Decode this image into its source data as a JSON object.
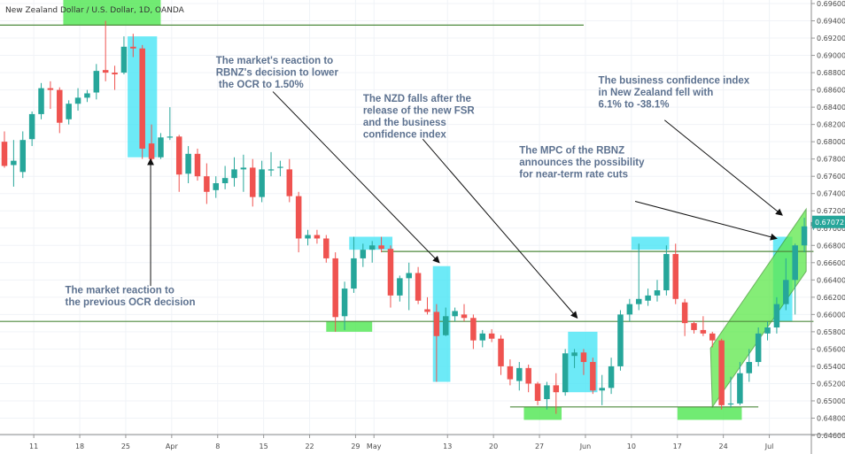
{
  "chart_data": {
    "type": "candlestick",
    "title": "New Zealand Dollar / U.S. Dollar, 1D, OANDA",
    "last_price_label": "0.67072",
    "ylim": [
      0.646,
      0.6965
    ],
    "y_ticks": [
      "0.69600",
      "0.69400",
      "0.69200",
      "0.69000",
      "0.68800",
      "0.68600",
      "0.68400",
      "0.68200",
      "0.68000",
      "0.67800",
      "0.67600",
      "0.67400",
      "0.67200",
      "0.67000",
      "0.66800",
      "0.66600",
      "0.66400",
      "0.66200",
      "0.66000",
      "0.65800",
      "0.65600",
      "0.65400",
      "0.65200",
      "0.65000",
      "0.64800",
      "0.64600"
    ],
    "x_ticks": [
      {
        "i": 3,
        "label": "11"
      },
      {
        "i": 8,
        "label": "18"
      },
      {
        "i": 13,
        "label": "25"
      },
      {
        "i": 18,
        "label": "Apr"
      },
      {
        "i": 23,
        "label": "8"
      },
      {
        "i": 28,
        "label": "15"
      },
      {
        "i": 33,
        "label": "22"
      },
      {
        "i": 38,
        "label": "29"
      },
      {
        "i": 40,
        "label": "May"
      },
      {
        "i": 48,
        "label": "13"
      },
      {
        "i": 53,
        "label": "20"
      },
      {
        "i": 58,
        "label": "27"
      },
      {
        "i": 63,
        "label": "Jun"
      },
      {
        "i": 68,
        "label": "10"
      },
      {
        "i": 73,
        "label": "17"
      },
      {
        "i": 78,
        "label": "24"
      },
      {
        "i": 83,
        "label": "Jul"
      }
    ],
    "candles": [
      {
        "o": 0.68,
        "h": 0.6812,
        "l": 0.677,
        "c": 0.6772
      },
      {
        "o": 0.6773,
        "h": 0.6802,
        "l": 0.6748,
        "c": 0.6778
      },
      {
        "o": 0.6765,
        "h": 0.6812,
        "l": 0.6758,
        "c": 0.6802
      },
      {
        "o": 0.6803,
        "h": 0.6835,
        "l": 0.6795,
        "c": 0.6832
      },
      {
        "o": 0.6832,
        "h": 0.6868,
        "l": 0.6826,
        "c": 0.6862
      },
      {
        "o": 0.6862,
        "h": 0.687,
        "l": 0.6838,
        "c": 0.686
      },
      {
        "o": 0.686,
        "h": 0.6863,
        "l": 0.681,
        "c": 0.6822
      },
      {
        "o": 0.6826,
        "h": 0.6848,
        "l": 0.682,
        "c": 0.6844
      },
      {
        "o": 0.6844,
        "h": 0.6862,
        "l": 0.6836,
        "c": 0.6851
      },
      {
        "o": 0.6851,
        "h": 0.686,
        "l": 0.6846,
        "c": 0.6856
      },
      {
        "o": 0.6857,
        "h": 0.689,
        "l": 0.6849,
        "c": 0.6882
      },
      {
        "o": 0.6883,
        "h": 0.694,
        "l": 0.687,
        "c": 0.688
      },
      {
        "o": 0.688,
        "h": 0.6888,
        "l": 0.686,
        "c": 0.6878
      },
      {
        "o": 0.688,
        "h": 0.6922,
        "l": 0.6878,
        "c": 0.691
      },
      {
        "o": 0.691,
        "h": 0.6925,
        "l": 0.6898,
        "c": 0.6908
      },
      {
        "o": 0.6908,
        "h": 0.6912,
        "l": 0.678,
        "c": 0.6792
      },
      {
        "o": 0.6798,
        "h": 0.682,
        "l": 0.6778,
        "c": 0.678
      },
      {
        "o": 0.6782,
        "h": 0.681,
        "l": 0.678,
        "c": 0.6805
      },
      {
        "o": 0.6806,
        "h": 0.684,
        "l": 0.6802,
        "c": 0.6806
      },
      {
        "o": 0.6806,
        "h": 0.6808,
        "l": 0.6742,
        "c": 0.6762
      },
      {
        "o": 0.6763,
        "h": 0.6795,
        "l": 0.6752,
        "c": 0.6786
      },
      {
        "o": 0.6786,
        "h": 0.6792,
        "l": 0.6755,
        "c": 0.676
      },
      {
        "o": 0.676,
        "h": 0.6775,
        "l": 0.6728,
        "c": 0.6742
      },
      {
        "o": 0.6744,
        "h": 0.676,
        "l": 0.6735,
        "c": 0.6752
      },
      {
        "o": 0.6752,
        "h": 0.6772,
        "l": 0.6745,
        "c": 0.6758
      },
      {
        "o": 0.6758,
        "h": 0.6782,
        "l": 0.6748,
        "c": 0.6768
      },
      {
        "o": 0.6768,
        "h": 0.6785,
        "l": 0.6742,
        "c": 0.677
      },
      {
        "o": 0.677,
        "h": 0.678,
        "l": 0.6725,
        "c": 0.6736
      },
      {
        "o": 0.6736,
        "h": 0.6778,
        "l": 0.673,
        "c": 0.6768
      },
      {
        "o": 0.6768,
        "h": 0.6788,
        "l": 0.676,
        "c": 0.6768
      },
      {
        "o": 0.677,
        "h": 0.6778,
        "l": 0.676,
        "c": 0.6771
      },
      {
        "o": 0.6768,
        "h": 0.678,
        "l": 0.673,
        "c": 0.6737
      },
      {
        "o": 0.6737,
        "h": 0.6742,
        "l": 0.6672,
        "c": 0.6688
      },
      {
        "o": 0.6688,
        "h": 0.6698,
        "l": 0.668,
        "c": 0.6692
      },
      {
        "o": 0.6692,
        "h": 0.6698,
        "l": 0.6682,
        "c": 0.6688
      },
      {
        "o": 0.6688,
        "h": 0.6692,
        "l": 0.666,
        "c": 0.6665
      },
      {
        "o": 0.6665,
        "h": 0.6672,
        "l": 0.658,
        "c": 0.6597
      },
      {
        "o": 0.6598,
        "h": 0.6638,
        "l": 0.6582,
        "c": 0.663
      },
      {
        "o": 0.663,
        "h": 0.669,
        "l": 0.6625,
        "c": 0.6665
      },
      {
        "o": 0.6665,
        "h": 0.6682,
        "l": 0.6655,
        "c": 0.6675
      },
      {
        "o": 0.6675,
        "h": 0.6685,
        "l": 0.666,
        "c": 0.668
      },
      {
        "o": 0.668,
        "h": 0.669,
        "l": 0.6672,
        "c": 0.6676
      },
      {
        "o": 0.6676,
        "h": 0.668,
        "l": 0.6608,
        "c": 0.6622
      },
      {
        "o": 0.6622,
        "h": 0.6645,
        "l": 0.6615,
        "c": 0.6642
      },
      {
        "o": 0.6642,
        "h": 0.666,
        "l": 0.6605,
        "c": 0.6648
      },
      {
        "o": 0.6648,
        "h": 0.6655,
        "l": 0.6612,
        "c": 0.6616
      },
      {
        "o": 0.6606,
        "h": 0.662,
        "l": 0.66,
        "c": 0.6603
      },
      {
        "o": 0.6603,
        "h": 0.6612,
        "l": 0.6522,
        "c": 0.6575
      },
      {
        "o": 0.6576,
        "h": 0.6608,
        "l": 0.6575,
        "c": 0.6598
      },
      {
        "o": 0.6598,
        "h": 0.6608,
        "l": 0.6592,
        "c": 0.6604
      },
      {
        "o": 0.66,
        "h": 0.6612,
        "l": 0.6592,
        "c": 0.6596
      },
      {
        "o": 0.6596,
        "h": 0.66,
        "l": 0.656,
        "c": 0.657
      },
      {
        "o": 0.657,
        "h": 0.6582,
        "l": 0.6562,
        "c": 0.6578
      },
      {
        "o": 0.6578,
        "h": 0.6583,
        "l": 0.6568,
        "c": 0.6572
      },
      {
        "o": 0.6572,
        "h": 0.6576,
        "l": 0.653,
        "c": 0.654
      },
      {
        "o": 0.654,
        "h": 0.6548,
        "l": 0.6518,
        "c": 0.6525
      },
      {
        "o": 0.6523,
        "h": 0.6545,
        "l": 0.6512,
        "c": 0.6538
      },
      {
        "o": 0.6538,
        "h": 0.6542,
        "l": 0.651,
        "c": 0.652
      },
      {
        "o": 0.652,
        "h": 0.6522,
        "l": 0.6495,
        "c": 0.65
      },
      {
        "o": 0.6502,
        "h": 0.6522,
        "l": 0.649,
        "c": 0.6518
      },
      {
        "o": 0.6518,
        "h": 0.6532,
        "l": 0.6485,
        "c": 0.651
      },
      {
        "o": 0.651,
        "h": 0.656,
        "l": 0.6506,
        "c": 0.6555
      },
      {
        "o": 0.6552,
        "h": 0.656,
        "l": 0.6538,
        "c": 0.6556
      },
      {
        "o": 0.6556,
        "h": 0.656,
        "l": 0.653,
        "c": 0.6545
      },
      {
        "o": 0.6545,
        "h": 0.655,
        "l": 0.6508,
        "c": 0.6512
      },
      {
        "o": 0.6512,
        "h": 0.653,
        "l": 0.6495,
        "c": 0.6515
      },
      {
        "o": 0.6515,
        "h": 0.655,
        "l": 0.6508,
        "c": 0.654
      },
      {
        "o": 0.654,
        "h": 0.6605,
        "l": 0.6535,
        "c": 0.66
      },
      {
        "o": 0.66,
        "h": 0.6618,
        "l": 0.6592,
        "c": 0.6612
      },
      {
        "o": 0.6612,
        "h": 0.6682,
        "l": 0.6605,
        "c": 0.6618
      },
      {
        "o": 0.6616,
        "h": 0.663,
        "l": 0.661,
        "c": 0.6622
      },
      {
        "o": 0.6622,
        "h": 0.664,
        "l": 0.6615,
        "c": 0.6628
      },
      {
        "o": 0.6628,
        "h": 0.668,
        "l": 0.6622,
        "c": 0.667
      },
      {
        "o": 0.667,
        "h": 0.6682,
        "l": 0.6612,
        "c": 0.6618
      },
      {
        "o": 0.6614,
        "h": 0.6618,
        "l": 0.6575,
        "c": 0.659
      },
      {
        "o": 0.659,
        "h": 0.6592,
        "l": 0.6578,
        "c": 0.6582
      },
      {
        "o": 0.6582,
        "h": 0.6598,
        "l": 0.6575,
        "c": 0.6578
      },
      {
        "o": 0.6578,
        "h": 0.658,
        "l": 0.6562,
        "c": 0.657
      },
      {
        "o": 0.657,
        "h": 0.6572,
        "l": 0.649,
        "c": 0.6495
      },
      {
        "o": 0.6497,
        "h": 0.6528,
        "l": 0.6492,
        "c": 0.6497
      },
      {
        "o": 0.6497,
        "h": 0.6545,
        "l": 0.6495,
        "c": 0.6532
      },
      {
        "o": 0.6532,
        "h": 0.656,
        "l": 0.6522,
        "c": 0.6545
      },
      {
        "o": 0.6545,
        "h": 0.6585,
        "l": 0.654,
        "c": 0.6578
      },
      {
        "o": 0.6578,
        "h": 0.6592,
        "l": 0.657,
        "c": 0.6585
      },
      {
        "o": 0.6585,
        "h": 0.662,
        "l": 0.6578,
        "c": 0.6612
      },
      {
        "o": 0.6612,
        "h": 0.6665,
        "l": 0.6605,
        "c": 0.664
      },
      {
        "o": 0.664,
        "h": 0.6682,
        "l": 0.66,
        "c": 0.668
      },
      {
        "o": 0.668,
        "h": 0.6712,
        "l": 0.6672,
        "c": 0.6702
      },
      {
        "o": 0.6702,
        "h": 0.6712,
        "l": 0.6698,
        "c": 0.6707
      }
    ],
    "horizontal_lines": [
      {
        "name": "resistance-top",
        "y": 0.6935,
        "i_start": -1,
        "i_end": 63
      },
      {
        "name": "resistance-mid",
        "y": 0.6673,
        "i_start": 41,
        "i_end": 88
      },
      {
        "name": "support-upper",
        "y": 0.6592,
        "i_start": -1,
        "i_end": 88
      },
      {
        "name": "support-lower",
        "y": 0.6493,
        "i_start": 55,
        "i_end": 82
      }
    ],
    "cyan_zones": [
      {
        "i_start": 13.4,
        "i_end": 16.6,
        "y_top": 0.6922,
        "y_bottom": 0.6782
      },
      {
        "i_start": 37.5,
        "i_end": 42.2,
        "y_top": 0.669,
        "y_bottom": 0.6675
      },
      {
        "i_start": 46.6,
        "i_end": 48.5,
        "y_top": 0.6656,
        "y_bottom": 0.6522
      },
      {
        "i_start": 61.3,
        "i_end": 64.5,
        "y_top": 0.658,
        "y_bottom": 0.651
      },
      {
        "i_start": 68.2,
        "i_end": 72.3,
        "y_top": 0.669,
        "y_bottom": 0.6675
      },
      {
        "i_start": 83.6,
        "i_end": 85.7,
        "y_top": 0.669,
        "y_bottom": 0.6592
      }
    ],
    "green_zones": [
      {
        "i_start": 6.4,
        "i_end": 17.0,
        "y_top": 0.6965,
        "y_bottom": 0.6935
      },
      {
        "i_start": 35.0,
        "i_end": 40.0,
        "y_top": 0.6592,
        "y_bottom": 0.658
      },
      {
        "i_start": 56.5,
        "i_end": 60.6,
        "y_top": 0.6493,
        "y_bottom": 0.6478
      },
      {
        "i_start": 73.2,
        "i_end": 80.2,
        "y_top": 0.6493,
        "y_bottom": 0.6478
      }
    ],
    "channel": [
      {
        "i": 76.8,
        "y": 0.6561
      },
      {
        "i": 87.2,
        "y": 0.6722
      },
      {
        "i": 87.2,
        "y": 0.665
      },
      {
        "i": 77.0,
        "y": 0.6493
      }
    ],
    "annotations": [
      {
        "name": "annot-rbnz-reaction",
        "lines": [
          "The market's reaction to",
          "RBNZ's decision to lower",
          " the OCR to 1.50%"
        ],
        "text_i": 23.0,
        "text_y": 0.68905,
        "arrow": {
          "i1": 29.2,
          "y1": 0.6858,
          "i2": 47.3,
          "y2": 0.666
        }
      },
      {
        "name": "annot-nzd-falls",
        "lines": [
          "The NZD falls after the",
          "release of the new FSR",
          "and the business",
          "confidence index"
        ],
        "text_i": 39.0,
        "text_y": 0.68465,
        "arrow": {
          "i1": 45.5,
          "y1": 0.6803,
          "i2": 62.3,
          "y2": 0.6596
        }
      },
      {
        "name": "annot-ocr-decision",
        "lines": [
          "The market reaction to",
          "the previous OCR decision"
        ],
        "text_i": 6.6,
        "text_y": 0.66245,
        "arrow": {
          "i1": 15.9,
          "y1": 0.6633,
          "i2": 15.9,
          "y2": 0.678
        }
      },
      {
        "name": "annot-mpc",
        "lines": [
          "The MPC of the RBNZ",
          "announces the possibility",
          "for near-term rate cuts"
        ],
        "text_i": 56.0,
        "text_y": 0.67865,
        "arrow": {
          "i1": 68.6,
          "y1": 0.6731,
          "i2": 84.0,
          "y2": 0.6688
        }
      },
      {
        "name": "annot-business-confidence",
        "lines": [
          "The business confidence index",
          "in New Zealand fell with",
          "6.1% to -38.1%"
        ],
        "text_i": 64.6,
        "text_y": 0.68675,
        "arrow": {
          "i1": 71.8,
          "y1": 0.6825,
          "i2": 84.6,
          "y2": 0.6715
        }
      }
    ],
    "colors": {
      "up": "#26a69a",
      "down": "#ef5350",
      "line": "#4e8a3d",
      "cyan": "#48e5f5",
      "green": "#58e85a",
      "channel": "#5de84a",
      "annotation": "#5d7290",
      "price_badge": "#26a69a"
    }
  }
}
